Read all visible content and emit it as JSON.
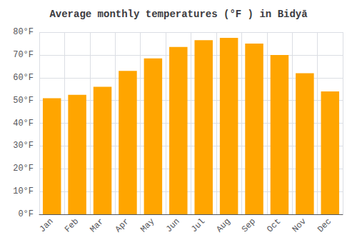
{
  "chart_data": {
    "type": "bar",
    "title": "Average monthly temperatures (°F ) in Bidyā",
    "categories": [
      "Jan",
      "Feb",
      "Mar",
      "Apr",
      "May",
      "Jun",
      "Jul",
      "Aug",
      "Sep",
      "Oct",
      "Nov",
      "Dec"
    ],
    "values": [
      51,
      52.5,
      56,
      63,
      68.5,
      73.5,
      76.5,
      77.5,
      75,
      70,
      62,
      54
    ],
    "color": "#FFA500",
    "ylim": [
      0,
      80
    ],
    "yticks": [
      {
        "value": 0,
        "label": "0°F"
      },
      {
        "value": 10,
        "label": "10°F"
      },
      {
        "value": 20,
        "label": "20°F"
      },
      {
        "value": 30,
        "label": "30°F"
      },
      {
        "value": 40,
        "label": "40°F"
      },
      {
        "value": 50,
        "label": "50°F"
      },
      {
        "value": 60,
        "label": "60°F"
      },
      {
        "value": 70,
        "label": "70°F"
      },
      {
        "value": 80,
        "label": "80°F"
      }
    ],
    "grid": true
  }
}
